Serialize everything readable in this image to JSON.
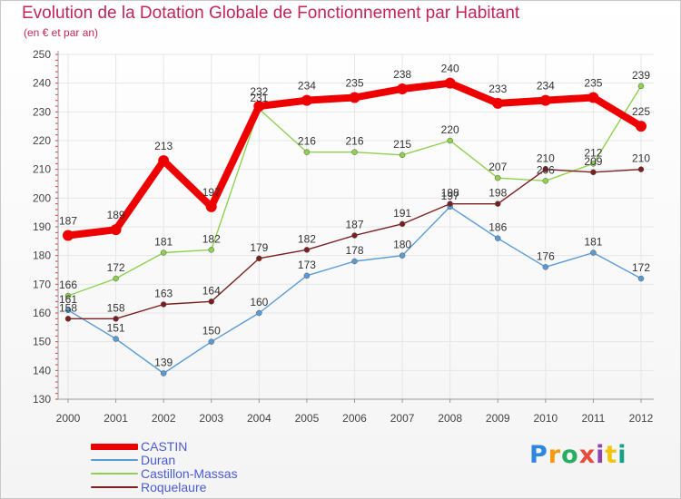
{
  "title": "Evolution de la Dotation Globale de Fonctionnement par Habitant",
  "subtitle": "(en € et par an)",
  "brand": "Proxiti",
  "chart_data": {
    "type": "line",
    "title": "Evolution de la Dotation Globale de Fonctionnement par Habitant",
    "subtitle": "(en € et par an)",
    "xlabel": "",
    "ylabel": "",
    "ylim": [
      130,
      250
    ],
    "yticks": [
      130,
      140,
      150,
      160,
      170,
      180,
      190,
      200,
      210,
      220,
      230,
      240,
      250
    ],
    "grid": true,
    "legend": "bottom-left",
    "categories": [
      "2000",
      "2001",
      "2002",
      "2003",
      "2004",
      "2005",
      "2006",
      "2007",
      "2008",
      "2009",
      "2010",
      "2011",
      "2012"
    ],
    "series": [
      {
        "name": "CASTIN",
        "color": "#ee0000",
        "values": [
          187,
          189,
          213,
          197,
          232,
          234,
          235,
          238,
          240,
          233,
          234,
          235,
          225
        ]
      },
      {
        "name": "Duran",
        "color": "#5b9bd5",
        "values": [
          161,
          151,
          139,
          150,
          160,
          173,
          178,
          180,
          197,
          186,
          176,
          181,
          172
        ]
      },
      {
        "name": "Castillon-Massas",
        "color": "#8fd14f",
        "values": [
          166,
          172,
          181,
          182,
          231,
          216,
          216,
          215,
          220,
          207,
          206,
          212,
          239
        ]
      },
      {
        "name": "Roquelaure",
        "color": "#7a1f1f",
        "values": [
          158,
          158,
          163,
          164,
          179,
          182,
          187,
          191,
          198,
          198,
          210,
          209,
          210
        ]
      }
    ]
  }
}
